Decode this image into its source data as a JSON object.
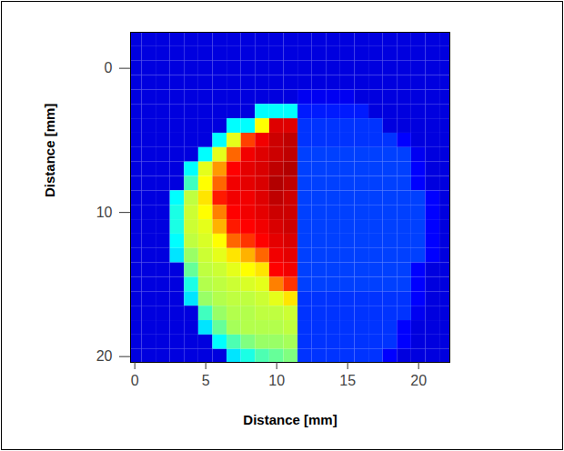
{
  "chart_data": {
    "type": "heatmap",
    "xlabel": "Distance [mm]",
    "ylabel": "Distance [mm]",
    "x": [
      0,
      1,
      2,
      3,
      4,
      5,
      6,
      7,
      8,
      9,
      10,
      11,
      12,
      13,
      14,
      15,
      16,
      17,
      18,
      19,
      20,
      21,
      22
    ],
    "y": [
      -2,
      -1,
      0,
      1,
      2,
      3,
      4,
      5,
      6,
      7,
      8,
      9,
      10,
      11,
      12,
      13,
      14,
      15,
      16,
      17,
      18,
      19,
      20
    ],
    "z": [
      [
        15,
        15,
        15,
        15,
        15,
        15,
        15,
        15,
        15,
        15,
        15,
        15,
        15,
        15,
        15,
        15,
        15,
        15,
        15,
        15,
        15,
        15,
        15
      ],
      [
        15,
        15,
        15,
        15,
        15,
        15,
        15,
        15,
        15,
        15,
        15,
        15,
        15,
        15,
        15,
        15,
        15,
        15,
        15,
        15,
        15,
        15,
        15
      ],
      [
        15,
        15,
        15,
        15,
        15,
        15,
        15,
        15,
        15,
        15,
        15,
        15,
        15,
        15,
        15,
        15,
        15,
        15,
        15,
        15,
        15,
        15,
        15
      ],
      [
        15,
        15,
        15,
        15,
        15,
        15,
        15,
        15,
        15,
        15,
        15,
        15,
        15,
        15,
        15,
        15,
        15,
        15,
        15,
        15,
        15,
        15,
        15
      ],
      [
        15,
        15,
        15,
        15,
        15,
        15,
        15,
        15,
        15,
        15,
        15,
        15,
        18,
        18,
        18,
        18,
        15,
        15,
        15,
        15,
        15,
        15,
        15
      ],
      [
        15,
        15,
        15,
        15,
        15,
        15,
        15,
        15,
        15,
        40,
        40,
        40,
        22,
        22,
        22,
        22,
        22,
        15,
        15,
        15,
        15,
        15,
        15
      ],
      [
        15,
        15,
        15,
        15,
        15,
        15,
        15,
        40,
        40,
        60,
        85,
        85,
        24,
        24,
        24,
        24,
        24,
        24,
        15,
        15,
        15,
        15,
        15
      ],
      [
        15,
        15,
        15,
        15,
        15,
        15,
        40,
        58,
        75,
        82,
        88,
        90,
        24,
        24,
        24,
        24,
        24,
        24,
        24,
        20,
        15,
        15,
        15
      ],
      [
        15,
        15,
        15,
        15,
        15,
        40,
        58,
        72,
        82,
        85,
        88,
        90,
        25,
        25,
        25,
        25,
        25,
        25,
        25,
        25,
        18,
        15,
        15
      ],
      [
        15,
        15,
        15,
        15,
        40,
        58,
        68,
        80,
        84,
        86,
        90,
        92,
        25,
        25,
        25,
        25,
        25,
        25,
        25,
        25,
        20,
        15,
        15
      ],
      [
        15,
        15,
        15,
        15,
        45,
        60,
        72,
        82,
        84,
        86,
        92,
        90,
        25,
        25,
        25,
        25,
        25,
        25,
        25,
        25,
        20,
        15,
        15
      ],
      [
        15,
        15,
        15,
        40,
        55,
        62,
        78,
        82,
        82,
        85,
        90,
        88,
        25,
        25,
        25,
        25,
        25,
        25,
        25,
        25,
        25,
        20,
        15
      ],
      [
        15,
        15,
        15,
        42,
        56,
        60,
        70,
        80,
        82,
        84,
        88,
        88,
        25,
        25,
        25,
        25,
        25,
        25,
        25,
        25,
        25,
        20,
        15
      ],
      [
        15,
        15,
        15,
        42,
        56,
        58,
        66,
        78,
        80,
        82,
        86,
        88,
        25,
        25,
        25,
        25,
        25,
        25,
        25,
        25,
        25,
        20,
        15
      ],
      [
        15,
        15,
        15,
        40,
        55,
        57,
        60,
        72,
        76,
        80,
        84,
        86,
        25,
        25,
        25,
        25,
        25,
        25,
        25,
        25,
        25,
        20,
        15
      ],
      [
        15,
        15,
        15,
        38,
        52,
        56,
        58,
        62,
        66,
        72,
        82,
        84,
        25,
        25,
        25,
        25,
        25,
        25,
        25,
        25,
        25,
        20,
        15
      ],
      [
        15,
        15,
        15,
        15,
        48,
        55,
        56,
        58,
        60,
        62,
        80,
        82,
        25,
        25,
        25,
        25,
        25,
        25,
        25,
        25,
        20,
        15,
        15
      ],
      [
        15,
        15,
        15,
        15,
        42,
        54,
        55,
        56,
        57,
        58,
        70,
        76,
        25,
        25,
        25,
        25,
        25,
        25,
        25,
        25,
        20,
        15,
        15
      ],
      [
        15,
        15,
        15,
        15,
        38,
        52,
        54,
        55,
        55,
        56,
        58,
        62,
        24,
        24,
        24,
        24,
        24,
        24,
        24,
        24,
        20,
        15,
        15
      ],
      [
        15,
        15,
        15,
        15,
        15,
        45,
        52,
        54,
        54,
        55,
        55,
        56,
        24,
        24,
        24,
        24,
        24,
        24,
        24,
        24,
        18,
        15,
        15
      ],
      [
        15,
        15,
        15,
        15,
        15,
        38,
        48,
        53,
        54,
        54,
        54,
        55,
        24,
        24,
        24,
        24,
        24,
        24,
        24,
        20,
        15,
        15,
        15
      ],
      [
        15,
        15,
        15,
        15,
        15,
        15,
        40,
        46,
        50,
        52,
        52,
        53,
        24,
        24,
        24,
        24,
        24,
        24,
        24,
        20,
        15,
        15,
        15
      ],
      [
        15,
        15,
        15,
        15,
        15,
        15,
        15,
        38,
        42,
        46,
        48,
        50,
        24,
        24,
        24,
        24,
        24,
        24,
        20,
        15,
        15,
        15,
        15
      ]
    ],
    "color_range": [
      0,
      100
    ],
    "xlim": [
      -0.3,
      22.2
    ],
    "ylim": [
      -2.5,
      20.4
    ],
    "xticks": [
      0,
      5,
      10,
      15,
      20
    ],
    "yticks": [
      0,
      10,
      20
    ]
  }
}
